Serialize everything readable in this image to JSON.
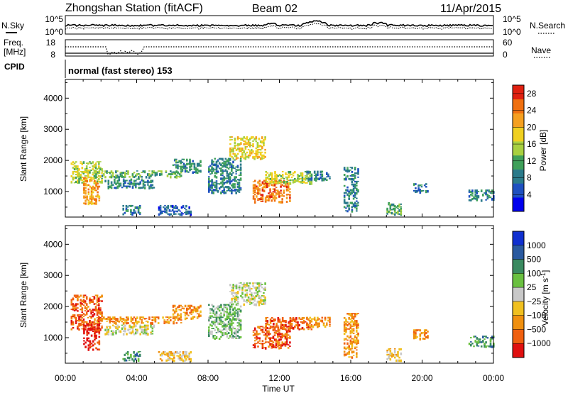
{
  "header": {
    "station_title": "Zhongshan Station (fitACF)",
    "beam": "Beam 02",
    "date": "11/Apr/2015"
  },
  "top_panels": {
    "nsky_label": "N.Sky",
    "nsky_ticks": [
      "10^5",
      "10^0"
    ],
    "nsearch_label": "N.Search",
    "nsearch_ticks": [
      "10^5",
      "10^0"
    ],
    "freq_label_1": "Freq.",
    "freq_label_2": "[MHz]",
    "freq_ticks": [
      "18",
      "8"
    ],
    "nave_label": "Nave",
    "nave_ticks": [
      "60",
      "0"
    ],
    "cpid_label": "CPID",
    "cpid_text": "normal (fast stereo) 153"
  },
  "chart_data": [
    {
      "type": "heatmap",
      "quantity": "power",
      "xlabel": "",
      "ylabel": "Slant Range [km]",
      "x_ticks": [
        "00:00",
        "04:00",
        "08:00",
        "12:00",
        "16:00",
        "20:00",
        "00:00"
      ],
      "xlim_hours": [
        0,
        24
      ],
      "ylim": [
        180,
        4600
      ],
      "y_ticks": [
        1000,
        2000,
        3000,
        4000
      ],
      "colorbar": {
        "label": "Power [dB]",
        "ticks": [
          4,
          8,
          12,
          16,
          20,
          24,
          28
        ],
        "range": [
          0,
          30
        ],
        "colors": [
          "#0000ee",
          "#1e50c0",
          "#2a7a8a",
          "#3fa05a",
          "#a8d040",
          "#f0d020",
          "#f5a020",
          "#f07010",
          "#e02010"
        ]
      },
      "scatter_regions": [
        {
          "t0": 0.3,
          "t1": 2.0,
          "r0": 1300,
          "r1": 2000,
          "level": 16
        },
        {
          "t0": 1.0,
          "t1": 1.9,
          "r0": 650,
          "r1": 1500,
          "level": 22
        },
        {
          "t0": 1.6,
          "t1": 6.5,
          "r0": 1500,
          "r1": 1700,
          "level": 12
        },
        {
          "t0": 2.2,
          "t1": 5.0,
          "r0": 1150,
          "r1": 1450,
          "level": 9
        },
        {
          "t0": 6.0,
          "t1": 7.6,
          "r0": 1650,
          "r1": 2100,
          "level": 10
        },
        {
          "t0": 5.2,
          "t1": 7.0,
          "r0": 300,
          "r1": 600,
          "level": 6
        },
        {
          "t0": 3.2,
          "t1": 4.2,
          "r0": 300,
          "r1": 600,
          "level": 8
        },
        {
          "t0": 8.0,
          "t1": 9.8,
          "r0": 1000,
          "r1": 2100,
          "level": 9
        },
        {
          "t0": 9.2,
          "t1": 11.2,
          "r0": 2100,
          "r1": 2800,
          "level": 18
        },
        {
          "t0": 10.5,
          "t1": 12.6,
          "r0": 700,
          "r1": 1400,
          "level": 24
        },
        {
          "t0": 11.2,
          "t1": 13.8,
          "r0": 1300,
          "r1": 1700,
          "level": 16
        },
        {
          "t0": 13.5,
          "t1": 14.8,
          "r0": 1400,
          "r1": 1700,
          "level": 8
        },
        {
          "t0": 15.6,
          "t1": 16.4,
          "r0": 400,
          "r1": 1800,
          "level": 9
        },
        {
          "t0": 18.0,
          "t1": 18.8,
          "r0": 300,
          "r1": 700,
          "level": 12
        },
        {
          "t0": 19.5,
          "t1": 20.3,
          "r0": 1000,
          "r1": 1300,
          "level": 8
        },
        {
          "t0": 22.6,
          "t1": 24.0,
          "r0": 750,
          "r1": 1100,
          "level": 9
        }
      ]
    },
    {
      "type": "heatmap",
      "quantity": "velocity",
      "xlabel": "Time UT",
      "ylabel": "Slant Range [km]",
      "x_ticks": [
        "00:00",
        "04:00",
        "08:00",
        "12:00",
        "16:00",
        "20:00",
        "00:00"
      ],
      "xlim_hours": [
        0,
        24
      ],
      "ylim": [
        180,
        4600
      ],
      "y_ticks": [
        1000,
        2000,
        3000,
        4000
      ],
      "colorbar": {
        "label": "Velocity [m s^-1]",
        "tick_labels": [
          "1000",
          "500",
          "100",
          "25",
          "−25",
          "−100",
          "−500",
          "−1000"
        ],
        "colors": [
          "#1030d0",
          "#2a5aa0",
          "#3a8a60",
          "#6ac040",
          "#c8c8c8",
          "#f0c020",
          "#f09010",
          "#f06010",
          "#e01010"
        ]
      },
      "scatter_regions": [
        {
          "t0": 0.3,
          "t1": 2.0,
          "r0": 1300,
          "r1": 2400,
          "level": 7
        },
        {
          "t0": 1.0,
          "t1": 1.9,
          "r0": 650,
          "r1": 1500,
          "level": 8
        },
        {
          "t0": 1.6,
          "t1": 6.5,
          "r0": 1500,
          "r1": 1700,
          "level": 6
        },
        {
          "t0": 2.2,
          "t1": 5.0,
          "r0": 1150,
          "r1": 1450,
          "level": 4
        },
        {
          "t0": 6.0,
          "t1": 7.6,
          "r0": 1650,
          "r1": 2100,
          "level": 6
        },
        {
          "t0": 5.2,
          "t1": 7.0,
          "r0": 300,
          "r1": 600,
          "level": 5
        },
        {
          "t0": 3.2,
          "t1": 4.2,
          "r0": 300,
          "r1": 600,
          "level": 2
        },
        {
          "t0": 8.0,
          "t1": 9.8,
          "r0": 1000,
          "r1": 2100,
          "level": 3
        },
        {
          "t0": 9.2,
          "t1": 11.2,
          "r0": 2100,
          "r1": 2800,
          "level": 4
        },
        {
          "t0": 10.5,
          "t1": 12.6,
          "r0": 700,
          "r1": 1400,
          "level": 7
        },
        {
          "t0": 11.2,
          "t1": 13.8,
          "r0": 1300,
          "r1": 1700,
          "level": 7
        },
        {
          "t0": 13.5,
          "t1": 14.8,
          "r0": 1400,
          "r1": 1700,
          "level": 6
        },
        {
          "t0": 15.6,
          "t1": 16.4,
          "r0": 400,
          "r1": 1800,
          "level": 6
        },
        {
          "t0": 18.0,
          "t1": 18.8,
          "r0": 300,
          "r1": 700,
          "level": 5
        },
        {
          "t0": 19.5,
          "t1": 20.3,
          "r0": 1000,
          "r1": 1300,
          "level": 6
        },
        {
          "t0": 22.6,
          "t1": 24.0,
          "r0": 750,
          "r1": 1100,
          "level": 2
        }
      ]
    }
  ]
}
